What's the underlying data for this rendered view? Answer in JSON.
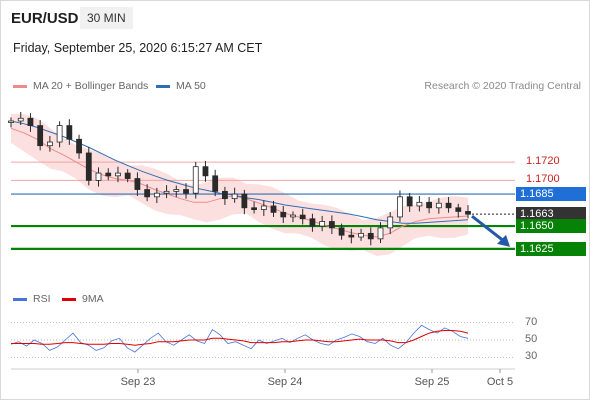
{
  "header": {
    "pair": "EUR/USD",
    "timeframe": "30 MIN"
  },
  "timestamp": "Friday, September 25, 2020 6:15:27 AM CET",
  "legend": {
    "ma20_label": "MA 20 + Bollinger Bands",
    "ma20_color": "#f08a8a",
    "ma50_label": "MA 50",
    "ma50_color": "#2f6fb5",
    "credit": "Research © 2020 Trading Central"
  },
  "rsi_legend": {
    "rsi_label": "RSI",
    "rsi_color": "#4a73d9",
    "ma9_label": "9MA",
    "ma9_color": "#e00000"
  },
  "chart_data": {
    "type": "line",
    "title": "EUR/USD",
    "price_range": [
      1.158,
      1.1788
    ],
    "x_ticks": [
      "Sep 23",
      "Sep 24",
      "Sep 25",
      "Oct 5"
    ],
    "levels": [
      {
        "value": 1.172,
        "label": "1.1720",
        "kind": "resistance",
        "color": "#cc1f1f"
      },
      {
        "value": 1.17,
        "label": "1.1700",
        "kind": "resistance",
        "color": "#cc1f1f"
      },
      {
        "value": 1.1685,
        "label": "1.1685",
        "kind": "pivot",
        "color": "#1f6fd6"
      },
      {
        "value": 1.1663,
        "label": "1.1663",
        "kind": "last-price",
        "color": "#333333"
      },
      {
        "value": 1.165,
        "label": "1.1650",
        "kind": "support",
        "color": "#068206"
      },
      {
        "value": 1.1625,
        "label": "1.1625",
        "kind": "support",
        "color": "#068206"
      }
    ],
    "series": [
      {
        "name": "MA 20 + Bollinger Bands",
        "values": [
          1.1757,
          1.1752,
          1.1745,
          1.1735,
          1.1728,
          1.172,
          1.1712,
          1.1706,
          1.1702,
          1.17,
          1.1696,
          1.169,
          1.1685,
          1.168,
          1.1676,
          1.1676,
          1.168,
          1.1683,
          1.168,
          1.1675,
          1.167,
          1.1664,
          1.166,
          1.1656,
          1.1651,
          1.1647,
          1.1643,
          1.164,
          1.1638,
          1.1642,
          1.165,
          1.1655,
          1.1658,
          1.1659,
          1.166,
          1.1661
        ]
      },
      {
        "name": "MA 50",
        "values": [
          1.1765,
          1.1762,
          1.1758,
          1.1753,
          1.1748,
          1.1742,
          1.1736,
          1.1729,
          1.1722,
          1.1716,
          1.171,
          1.1705,
          1.17,
          1.1696,
          1.1692,
          1.1689,
          1.1686,
          1.1684,
          1.1681,
          1.1679,
          1.1676,
          1.1673,
          1.1671,
          1.1669,
          1.1667,
          1.1665,
          1.1663,
          1.166,
          1.1657,
          1.1655,
          1.1653,
          1.1653,
          1.1654,
          1.1655,
          1.1656,
          1.1657
        ]
      }
    ],
    "price_path": [
      1.1765,
      1.1768,
      1.176,
      1.1738,
      1.1742,
      1.176,
      1.1745,
      1.173,
      1.17,
      1.1708,
      1.1705,
      1.1708,
      1.1702,
      1.169,
      1.1682,
      1.1686,
      1.1688,
      1.169,
      1.1686,
      1.1715,
      1.1705,
      1.1688,
      1.168,
      1.1685,
      1.167,
      1.1668,
      1.1672,
      1.1665,
      1.166,
      1.1662,
      1.1658,
      1.165,
      1.1655,
      1.1648,
      1.164,
      1.1638,
      1.1642,
      1.1636,
      1.1648,
      1.166,
      1.1682,
      1.1672,
      1.1676,
      1.167,
      1.1675,
      1.167,
      1.1666,
      1.1663
    ],
    "forecast": {
      "from": 1.1663,
      "to": 1.1625,
      "color": "#2459a8"
    },
    "rsi": {
      "ticks": [
        70,
        50,
        30
      ],
      "range": [
        20,
        80
      ],
      "rsi": [
        45,
        48,
        43,
        50,
        46,
        38,
        42,
        50,
        58,
        47,
        44,
        38,
        41,
        49,
        52,
        41,
        36,
        44,
        52,
        58,
        48,
        44,
        50,
        56,
        49,
        46,
        62,
        56,
        46,
        48,
        44,
        40,
        50,
        46,
        49,
        52,
        47,
        52,
        56,
        50,
        46,
        44,
        50,
        53,
        57,
        54,
        48,
        46,
        52,
        44,
        40,
        47,
        58,
        67,
        62,
        58,
        64,
        60,
        54,
        52
      ],
      "ma9": [
        46,
        46,
        46,
        46,
        45,
        45,
        46,
        47,
        47,
        46,
        45,
        45,
        45,
        46,
        46,
        45,
        44,
        45,
        46,
        48,
        48,
        48,
        49,
        50,
        50,
        50,
        52,
        52,
        51,
        50,
        49,
        47,
        47,
        47,
        47,
        48,
        48,
        49,
        50,
        50,
        49,
        48,
        48,
        49,
        50,
        51,
        50,
        50,
        50,
        49,
        47,
        47,
        50,
        54,
        58,
        60,
        61,
        61,
        60,
        58
      ]
    }
  }
}
